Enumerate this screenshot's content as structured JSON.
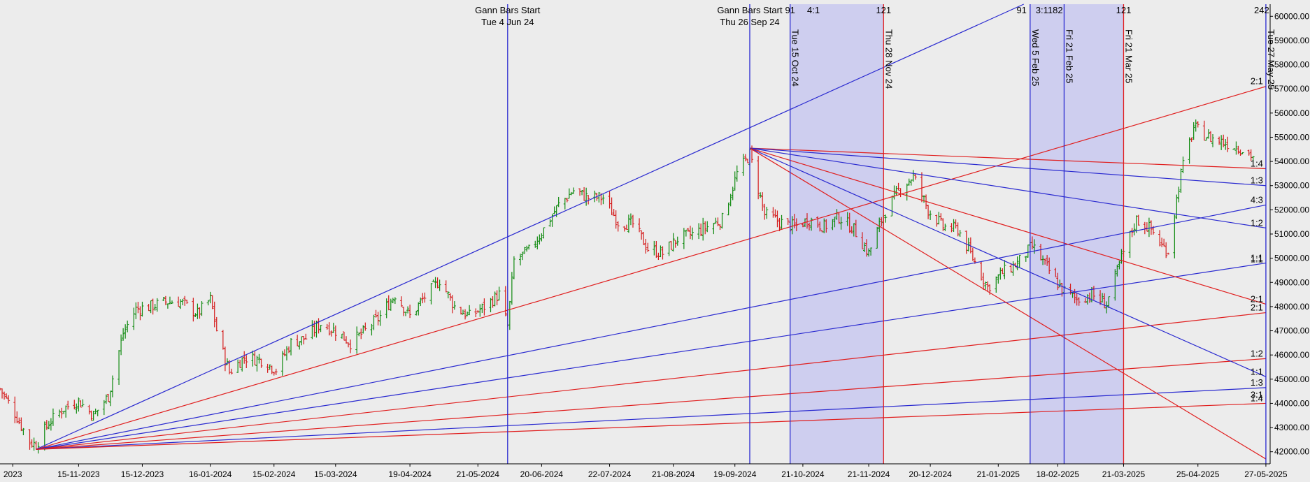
{
  "chart_data": {
    "type": "bar",
    "subtype": "ohlc-with-gann-fans",
    "y_axis": {
      "position": "right",
      "min": 41500,
      "max": 60500,
      "ticks": [
        42000,
        43000,
        44000,
        45000,
        46000,
        47000,
        48000,
        49000,
        50000,
        51000,
        52000,
        53000,
        54000,
        55000,
        56000,
        57000,
        58000,
        59000,
        60000
      ],
      "tick_labels": [
        "42000.00",
        "43000.00",
        "44000.00",
        "45000.00",
        "46000.00",
        "47000.00",
        "48000.00",
        "49000.00",
        "50000.00",
        "51000.00",
        "52000.00",
        "53000.00",
        "54000.00",
        "55000.00",
        "56000.00",
        "57000.00",
        "58000.00",
        "59000.00",
        "60000.00"
      ]
    },
    "x_axis": {
      "start": "2023-10-09",
      "end": "2025-05-29",
      "ticks": [
        {
          "date": "2023-10-15",
          "label": "2023"
        },
        {
          "date": "2023-11-15",
          "label": "15-11-2023"
        },
        {
          "date": "2023-12-15",
          "label": "15-12-2023"
        },
        {
          "date": "2024-01-16",
          "label": "16-01-2024"
        },
        {
          "date": "2024-02-15",
          "label": "15-02-2024"
        },
        {
          "date": "2024-03-15",
          "label": "15-03-2024"
        },
        {
          "date": "2024-04-19",
          "label": "19-04-2024"
        },
        {
          "date": "2024-05-21",
          "label": "21-05-2024"
        },
        {
          "date": "2024-06-20",
          "label": "20-06-2024"
        },
        {
          "date": "2024-07-22",
          "label": "22-07-2024"
        },
        {
          "date": "2024-08-21",
          "label": "21-08-2024"
        },
        {
          "date": "2024-09-19",
          "label": "19-09-2024"
        },
        {
          "date": "2024-10-21",
          "label": "21-10-2024"
        },
        {
          "date": "2024-11-21",
          "label": "21-11-2024"
        },
        {
          "date": "2024-12-20",
          "label": "20-12-2024"
        },
        {
          "date": "2025-01-21",
          "label": "21-01-2025"
        },
        {
          "date": "2025-02-18",
          "label": "18-02-2025"
        },
        {
          "date": "2025-03-21",
          "label": "21-03-2025"
        },
        {
          "date": "2025-04-25",
          "label": "25-04-2025"
        },
        {
          "date": "2025-05-27",
          "label": "27-05-2025"
        }
      ]
    },
    "shaded_zones": [
      {
        "from": "2024-10-15",
        "to": "2024-11-28"
      },
      {
        "from": "2025-02-05",
        "to": "2025-03-21"
      }
    ],
    "vertical_lines": [
      {
        "date": "2024-06-04",
        "color": "#2a2ad0",
        "label": ""
      },
      {
        "date": "2024-09-26",
        "color": "#2a2ad0",
        "label": ""
      },
      {
        "date": "2024-10-15",
        "color": "#2a2ad0",
        "label": "Tue 15 Oct 24"
      },
      {
        "date": "2024-11-28",
        "color": "#e01f1f",
        "label": "Thu 28 Nov 24"
      },
      {
        "date": "2025-02-05",
        "color": "#2a2ad0",
        "label": "Wed 5 Feb 25"
      },
      {
        "date": "2025-02-21",
        "color": "#2a2ad0",
        "label": "Fri 21 Feb 25"
      },
      {
        "date": "2025-03-21",
        "color": "#e01f1f",
        "label": "Fri 21 Mar 25"
      },
      {
        "date": "2025-05-27",
        "color": "#2a2ad0",
        "label": "Tue 27 May 25"
      }
    ],
    "top_annotations": [
      {
        "date": "2024-06-04",
        "line1": "Gann Bars Start",
        "line2": "Tue 4 Jun 24"
      },
      {
        "date": "2024-09-26",
        "line1": "Gann Bars Start",
        "line2": "Thu 26 Sep 24"
      }
    ],
    "top_numbers": [
      {
        "date": "2024-10-15",
        "text": "91"
      },
      {
        "date": "2024-10-26",
        "text": "4:1"
      },
      {
        "date": "2024-11-28",
        "text": "121"
      },
      {
        "date": "2025-02-01",
        "text": "91"
      },
      {
        "date": "2025-02-14",
        "text": "3:1182"
      },
      {
        "date": "2025-03-21",
        "text": "121"
      },
      {
        "date": "2025-05-25",
        "text": "242"
      }
    ],
    "fans": [
      {
        "origin": {
          "date": "2023-10-26",
          "price": 42100
        },
        "lines": [
          {
            "end_date": "2025-02-02",
            "end_price": 60500,
            "color": "#2a2ad0"
          },
          {
            "end_date": "2025-05-27",
            "end_price": 57100,
            "color": "#e01f1f",
            "label": "2:1"
          },
          {
            "end_date": "2025-05-27",
            "end_price": 52200,
            "color": "#2a2ad0",
            "label": "4:3"
          },
          {
            "end_date": "2025-05-27",
            "end_price": 49800,
            "color": "#2a2ad0",
            "label": "1:1"
          },
          {
            "end_date": "2025-05-27",
            "end_price": 47750,
            "color": "#e01f1f",
            "label": "2:1"
          },
          {
            "end_date": "2025-05-27",
            "end_price": 45850,
            "color": "#e01f1f",
            "label": "1:2"
          },
          {
            "end_date": "2025-05-27",
            "end_price": 44650,
            "color": "#2a2ad0",
            "label": "1:3"
          },
          {
            "end_date": "2025-05-27",
            "end_price": 44000,
            "color": "#e01f1f",
            "label": "1:4"
          }
        ]
      },
      {
        "origin": {
          "date": "2024-09-26",
          "price": 54550
        },
        "lines": [
          {
            "end_date": "2025-05-27",
            "end_price": 53700,
            "color": "#e01f1f",
            "label": "1:4"
          },
          {
            "end_date": "2025-05-27",
            "end_price": 53000,
            "color": "#2a2ad0",
            "label": "1:3"
          },
          {
            "end_date": "2025-05-27",
            "end_price": 51250,
            "color": "#2a2ad0",
            "label": "1:2"
          },
          {
            "end_date": "2025-05-27",
            "end_price": 48100,
            "color": "#e01f1f",
            "label": "2:1"
          },
          {
            "end_date": "2025-05-27",
            "end_price": 45100,
            "color": "#2a2ad0",
            "label": "1:1"
          },
          {
            "end_date": "2025-05-27",
            "end_price": 41700,
            "color": "#e01f1f",
            "label": ""
          }
        ]
      }
    ],
    "extra_labels": [
      {
        "date": "2025-05-27",
        "price": 49950,
        "text": "1:1"
      },
      {
        "date": "2025-05-27",
        "price": 44350,
        "text": "3:1"
      }
    ],
    "price_path": [
      [
        "2023-10-09",
        44600
      ],
      [
        "2023-10-16",
        43600
      ],
      [
        "2023-10-23",
        42400
      ],
      [
        "2023-10-26",
        42300
      ],
      [
        "2023-11-01",
        43200
      ],
      [
        "2023-11-08",
        43800
      ],
      [
        "2023-11-15",
        44100
      ],
      [
        "2023-11-22",
        43500
      ],
      [
        "2023-11-29",
        44300
      ],
      [
        "2023-12-06",
        46900
      ],
      [
        "2023-12-12",
        47900
      ],
      [
        "2023-12-19",
        48000
      ],
      [
        "2023-12-26",
        48200
      ],
      [
        "2024-01-02",
        48200
      ],
      [
        "2024-01-10",
        47700
      ],
      [
        "2024-01-16",
        48300
      ],
      [
        "2024-01-20",
        46600
      ],
      [
        "2024-01-25",
        45300
      ],
      [
        "2024-02-01",
        45900
      ],
      [
        "2024-02-09",
        45800
      ],
      [
        "2024-02-16",
        45400
      ],
      [
        "2024-02-23",
        46500
      ],
      [
        "2024-03-01",
        46700
      ],
      [
        "2024-03-08",
        47300
      ],
      [
        "2024-03-15",
        47000
      ],
      [
        "2024-03-22",
        46500
      ],
      [
        "2024-03-29",
        47000
      ],
      [
        "2024-04-05",
        47600
      ],
      [
        "2024-04-12",
        48500
      ],
      [
        "2024-04-19",
        47600
      ],
      [
        "2024-04-26",
        48400
      ],
      [
        "2024-05-03",
        49100
      ],
      [
        "2024-05-10",
        48000
      ],
      [
        "2024-05-17",
        47600
      ],
      [
        "2024-05-24",
        48000
      ],
      [
        "2024-05-31",
        48500
      ],
      [
        "2024-06-04",
        47200
      ],
      [
        "2024-06-07",
        49900
      ],
      [
        "2024-06-14",
        50300
      ],
      [
        "2024-06-21",
        51200
      ],
      [
        "2024-06-28",
        52200
      ],
      [
        "2024-07-05",
        52800
      ],
      [
        "2024-07-12",
        52500
      ],
      [
        "2024-07-19",
        52500
      ],
      [
        "2024-07-26",
        51500
      ],
      [
        "2024-08-02",
        51400
      ],
      [
        "2024-08-09",
        50400
      ],
      [
        "2024-08-16",
        50200
      ],
      [
        "2024-08-23",
        50800
      ],
      [
        "2024-08-30",
        51000
      ],
      [
        "2024-09-06",
        51300
      ],
      [
        "2024-09-13",
        51600
      ],
      [
        "2024-09-20",
        53500
      ],
      [
        "2024-09-26",
        54300
      ],
      [
        "2024-10-03",
        51800
      ],
      [
        "2024-10-10",
        51500
      ],
      [
        "2024-10-17",
        51300
      ],
      [
        "2024-10-24",
        51600
      ],
      [
        "2024-10-31",
        51300
      ],
      [
        "2024-11-07",
        51700
      ],
      [
        "2024-11-14",
        51200
      ],
      [
        "2024-11-21",
        50200
      ],
      [
        "2024-11-28",
        51800
      ],
      [
        "2024-12-05",
        52800
      ],
      [
        "2024-12-12",
        53400
      ],
      [
        "2024-12-19",
        52000
      ],
      [
        "2024-12-26",
        51300
      ],
      [
        "2025-01-02",
        51200
      ],
      [
        "2025-01-09",
        50000
      ],
      [
        "2025-01-16",
        48800
      ],
      [
        "2025-01-23",
        49400
      ],
      [
        "2025-01-30",
        49800
      ],
      [
        "2025-02-06",
        50500
      ],
      [
        "2025-02-13",
        49600
      ],
      [
        "2025-02-20",
        48700
      ],
      [
        "2025-02-27",
        48300
      ],
      [
        "2025-03-06",
        48500
      ],
      [
        "2025-03-13",
        48100
      ],
      [
        "2025-03-20",
        50000
      ],
      [
        "2025-03-27",
        51600
      ],
      [
        "2025-04-03",
        51200
      ],
      [
        "2025-04-08",
        50500
      ],
      [
        "2025-04-11",
        50300
      ],
      [
        "2025-04-17",
        53500
      ],
      [
        "2025-04-23",
        55400
      ],
      [
        "2025-04-30",
        55000
      ],
      [
        "2025-05-07",
        54800
      ],
      [
        "2025-05-14",
        54600
      ],
      [
        "2025-05-21",
        54200
      ]
    ],
    "colors": {
      "up": "#108a10",
      "down": "#d41c1c",
      "blue": "#2a2ad0",
      "red": "#e01f1f",
      "shade": "#c9c9f0",
      "bg": "#ececec"
    }
  }
}
